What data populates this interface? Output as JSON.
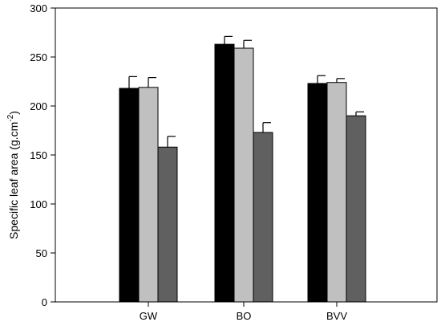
{
  "chart_data": {
    "type": "bar",
    "title": "",
    "xlabel": "",
    "ylabel": {
      "main": "Specific leaf area (g.cm",
      "sup": "-2",
      "tail": ")"
    },
    "ylim": [
      0,
      300
    ],
    "yticks": [
      0,
      50,
      100,
      150,
      200,
      250,
      300
    ],
    "categories": [
      "GW",
      "BO",
      "BVV"
    ],
    "series": [
      {
        "color": "#000000",
        "values": [
          218,
          263,
          223
        ],
        "errors": [
          12,
          8,
          8
        ]
      },
      {
        "color": "#c0c0c0",
        "values": [
          219,
          259,
          224
        ],
        "errors": [
          10,
          8,
          4
        ]
      },
      {
        "color": "#606060",
        "values": [
          158,
          173,
          190
        ],
        "errors": [
          11,
          10,
          4
        ]
      }
    ],
    "grid": false,
    "legend": "none"
  }
}
